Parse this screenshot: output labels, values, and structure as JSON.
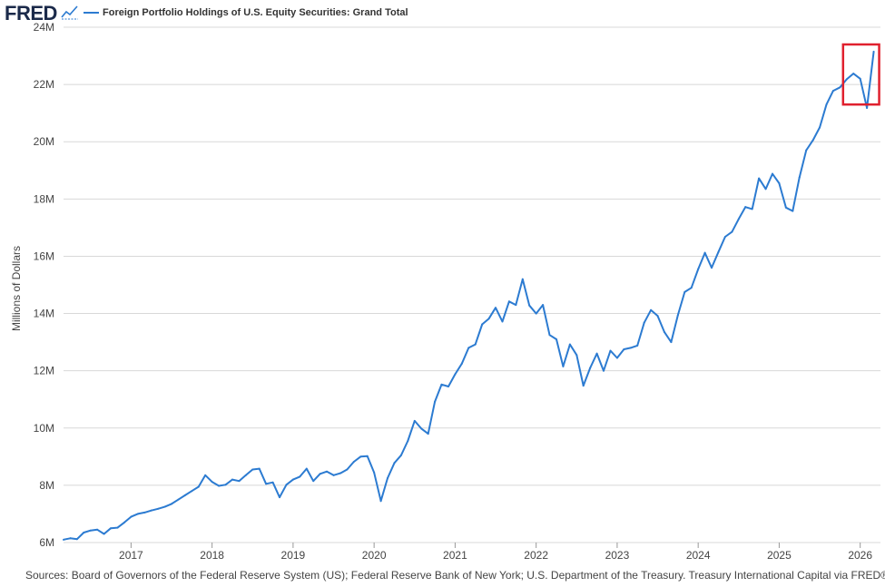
{
  "header": {
    "logo_text": "FRED",
    "logo_icon": "line-chart-icon",
    "legend_label": "Foreign Portfolio Holdings of U.S. Equity Securities: Grand Total"
  },
  "footer": {
    "source_text": "Sources: Board of Governors of the Federal Reserve System (US); Federal Reserve Bank of New York; U.S. Department of the Treasury. Treasury International Capital via FRED®"
  },
  "colors": {
    "series": "#2c7bd1",
    "grid": "#d8d8d8",
    "highlight_box": "#e0202e",
    "logo": "#1b2a4a"
  },
  "chart_data": {
    "type": "line",
    "ylabel": "Millions of Dollars",
    "xlabel": "",
    "ylim": [
      6,
      24
    ],
    "y_unit": "M",
    "yticks": [
      {
        "value": 6,
        "label": "6M"
      },
      {
        "value": 8,
        "label": "8M"
      },
      {
        "value": 10,
        "label": "10M"
      },
      {
        "value": 12,
        "label": "12M"
      },
      {
        "value": 14,
        "label": "14M"
      },
      {
        "value": 16,
        "label": "16M"
      },
      {
        "value": 18,
        "label": "18M"
      },
      {
        "value": 20,
        "label": "20M"
      },
      {
        "value": 22,
        "label": "22M"
      },
      {
        "value": 24,
        "label": "24M"
      }
    ],
    "xlim": [
      "2016-03",
      "2026-04"
    ],
    "xticks": [
      "2017",
      "2018",
      "2019",
      "2020",
      "2021",
      "2022",
      "2023",
      "2024",
      "2025",
      "2026"
    ],
    "grid": "horizontal",
    "legend": "top-left",
    "highlight": {
      "from": "2025-11",
      "to": "2026-03",
      "ymin": 21.3,
      "ymax": 24.0
    },
    "series": [
      {
        "name": "Foreign Portfolio Holdings of U.S. Equity Securities: Grand Total",
        "x": [
          "2016-03",
          "2016-04",
          "2016-05",
          "2016-06",
          "2016-07",
          "2016-08",
          "2016-09",
          "2016-10",
          "2016-11",
          "2016-12",
          "2017-01",
          "2017-02",
          "2017-03",
          "2017-04",
          "2017-05",
          "2017-06",
          "2017-07",
          "2017-08",
          "2017-09",
          "2017-10",
          "2017-11",
          "2017-12",
          "2018-01",
          "2018-02",
          "2018-03",
          "2018-04",
          "2018-05",
          "2018-06",
          "2018-07",
          "2018-08",
          "2018-09",
          "2018-10",
          "2018-11",
          "2018-12",
          "2019-01",
          "2019-02",
          "2019-03",
          "2019-04",
          "2019-05",
          "2019-06",
          "2019-07",
          "2019-08",
          "2019-09",
          "2019-10",
          "2019-11",
          "2019-12",
          "2020-01",
          "2020-02",
          "2020-03",
          "2020-04",
          "2020-05",
          "2020-06",
          "2020-07",
          "2020-08",
          "2020-09",
          "2020-10",
          "2020-11",
          "2020-12",
          "2021-01",
          "2021-02",
          "2021-03",
          "2021-04",
          "2021-05",
          "2021-06",
          "2021-07",
          "2021-08",
          "2021-09",
          "2021-10",
          "2021-11",
          "2021-12",
          "2022-01",
          "2022-02",
          "2022-03",
          "2022-04",
          "2022-05",
          "2022-06",
          "2022-07",
          "2022-08",
          "2022-09",
          "2022-10",
          "2022-11",
          "2022-12",
          "2023-01",
          "2023-02",
          "2023-03",
          "2023-04",
          "2023-05",
          "2023-06",
          "2023-07",
          "2023-08",
          "2023-09",
          "2023-10",
          "2023-11",
          "2023-12",
          "2024-01",
          "2024-02",
          "2024-03",
          "2024-04",
          "2024-05",
          "2024-06",
          "2024-07",
          "2024-08",
          "2024-09",
          "2024-10",
          "2024-11",
          "2024-12",
          "2025-01",
          "2025-02",
          "2025-03",
          "2025-04",
          "2025-05",
          "2025-06",
          "2025-07",
          "2025-08",
          "2025-09",
          "2025-10",
          "2025-11",
          "2025-12",
          "2026-01",
          "2026-02",
          "2026-03"
        ],
        "values": [
          6.1,
          6.15,
          6.12,
          6.35,
          6.42,
          6.45,
          6.3,
          6.5,
          6.52,
          6.7,
          6.9,
          7.0,
          7.05,
          7.12,
          7.18,
          7.25,
          7.35,
          7.5,
          7.65,
          7.8,
          7.95,
          8.35,
          8.12,
          7.98,
          8.02,
          8.2,
          8.15,
          8.35,
          8.55,
          8.58,
          8.05,
          8.1,
          7.58,
          8.02,
          8.2,
          8.3,
          8.58,
          8.15,
          8.4,
          8.48,
          8.35,
          8.42,
          8.55,
          8.82,
          9.0,
          9.02,
          8.45,
          7.45,
          8.25,
          8.78,
          9.05,
          9.55,
          10.25,
          9.98,
          9.8,
          10.92,
          11.52,
          11.45,
          11.88,
          12.25,
          12.8,
          12.92,
          13.62,
          13.82,
          14.2,
          13.72,
          14.42,
          14.3,
          15.2,
          14.28,
          14.0,
          14.3,
          13.25,
          13.1,
          12.15,
          12.92,
          12.55,
          11.48,
          12.1,
          12.6,
          12.0,
          12.7,
          12.45,
          12.75,
          12.8,
          12.88,
          13.68,
          14.12,
          13.92,
          13.35,
          13.0,
          13.95,
          14.75,
          14.9,
          15.55,
          16.12,
          15.6,
          16.15,
          16.68,
          16.85,
          17.3,
          17.72,
          17.65,
          18.72,
          18.35,
          18.88,
          18.55,
          17.7,
          17.58,
          18.75,
          19.7,
          20.05,
          20.5,
          21.3,
          21.78,
          21.9,
          22.18,
          22.38,
          22.2,
          21.18,
          23.15
        ]
      }
    ]
  }
}
